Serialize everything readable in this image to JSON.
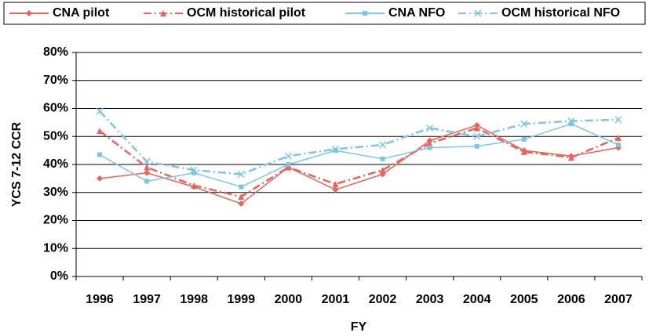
{
  "chart_data": {
    "type": "line",
    "y_label": "YCS 7-12 CCR",
    "x_label": "FY",
    "categories": [
      "1996",
      "1997",
      "1998",
      "1999",
      "2000",
      "2001",
      "2002",
      "2003",
      "2004",
      "2005",
      "2006",
      "2007"
    ],
    "series": [
      {
        "name": "CNA pilot",
        "color": "#e8645a",
        "dash": "solid",
        "marker": "diamond",
        "values": [
          35,
          37,
          32,
          26,
          39,
          31,
          36.5,
          48.5,
          54,
          45,
          43,
          46
        ]
      },
      {
        "name": "OCM historical pilot",
        "color": "#e8645a",
        "dash": "dashdot",
        "marker": "triangle",
        "values": [
          52,
          39,
          32.5,
          28.5,
          39,
          33,
          38,
          47.5,
          53,
          44.5,
          42.5,
          49.5
        ]
      },
      {
        "name": "CNA NFO",
        "color": "#7cc4e8",
        "dash": "solid",
        "marker": "square",
        "values": [
          43.5,
          34,
          37,
          32,
          40,
          45,
          42,
          46,
          46.5,
          49,
          54.5,
          47
        ]
      },
      {
        "name": "OCM historical NFO",
        "color": "#7cc4e8",
        "dash": "dashdot",
        "marker": "x",
        "values": [
          59,
          41,
          38,
          36.5,
          43,
          45.5,
          47,
          53,
          50,
          54.5,
          55.5,
          56
        ]
      }
    ],
    "ylim": [
      0,
      80
    ],
    "yticks": [
      {
        "value": 0,
        "label": "0%"
      },
      {
        "value": 10,
        "label": "10%"
      },
      {
        "value": 20,
        "label": "20%"
      },
      {
        "value": 30,
        "label": "30%"
      },
      {
        "value": 40,
        "label": "40%"
      },
      {
        "value": 50,
        "label": "50%"
      },
      {
        "value": 60,
        "label": "60%"
      },
      {
        "value": 70,
        "label": "70%"
      },
      {
        "value": 80,
        "label": "80%"
      }
    ],
    "grid": true,
    "legend": "top"
  }
}
